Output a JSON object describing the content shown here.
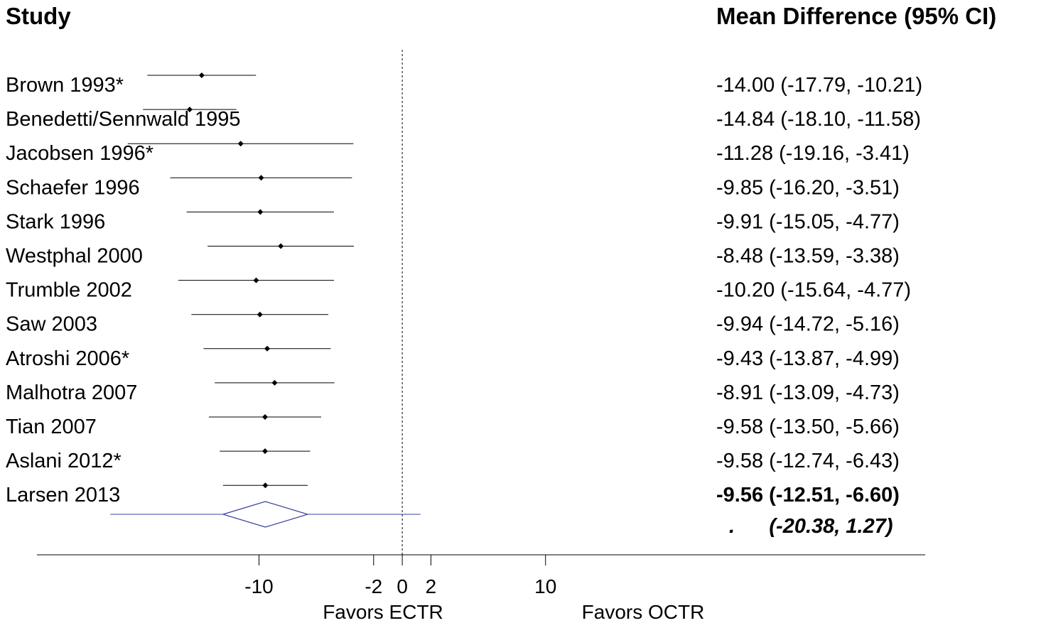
{
  "headers": {
    "study": "Study",
    "effect": "Mean Difference (95% CI)"
  },
  "chart_data": {
    "type": "forest",
    "studies": [
      {
        "name": "Brown 1993*",
        "md": -14.0,
        "lower": -17.79,
        "upper": -10.21,
        "ci_text": "-14.00 (-17.79, -10.21)"
      },
      {
        "name": "Benedetti/Sennwald 1995",
        "md": -14.84,
        "lower": -18.1,
        "upper": -11.58,
        "ci_text": "-14.84 (-18.10, -11.58)"
      },
      {
        "name": "Jacobsen 1996*",
        "md": -11.28,
        "lower": -19.16,
        "upper": -3.41,
        "ci_text": "-11.28 (-19.16, -3.41)"
      },
      {
        "name": "Schaefer 1996",
        "md": -9.85,
        "lower": -16.2,
        "upper": -3.51,
        "ci_text": "-9.85 (-16.20, -3.51)"
      },
      {
        "name": "Stark 1996",
        "md": -9.91,
        "lower": -15.05,
        "upper": -4.77,
        "ci_text": "-9.91 (-15.05, -4.77)"
      },
      {
        "name": "Westphal 2000",
        "md": -8.48,
        "lower": -13.59,
        "upper": -3.38,
        "ci_text": "-8.48 (-13.59, -3.38)"
      },
      {
        "name": "Trumble 2002",
        "md": -10.2,
        "lower": -15.64,
        "upper": -4.77,
        "ci_text": "-10.20 (-15.64, -4.77)"
      },
      {
        "name": "Saw 2003",
        "md": -9.94,
        "lower": -14.72,
        "upper": -5.16,
        "ci_text": "-9.94 (-14.72, -5.16)"
      },
      {
        "name": "Atroshi 2006*",
        "md": -9.43,
        "lower": -13.87,
        "upper": -4.99,
        "ci_text": "-9.43 (-13.87, -4.99)"
      },
      {
        "name": "Malhotra 2007",
        "md": -8.91,
        "lower": -13.09,
        "upper": -4.73,
        "ci_text": "-8.91 (-13.09, -4.73)"
      },
      {
        "name": "Tian 2007",
        "md": -9.58,
        "lower": -13.5,
        "upper": -5.66,
        "ci_text": "-9.58 (-13.50, -5.66)"
      },
      {
        "name": "Aslani 2012*",
        "md": -9.58,
        "lower": -12.74,
        "upper": -6.43,
        "ci_text": "-9.58 (-12.74, -6.43)"
      },
      {
        "name": "Larsen 2013",
        "md": -9.56,
        "lower": -12.51,
        "upper": -6.6,
        "ci_text": "-9.56 (-12.51, -6.60)",
        "bold": true
      }
    ],
    "pooled": {
      "md": -9.56,
      "lower": -12.51,
      "upper": -6.6,
      "prediction_lower": -20.38,
      "prediction_upper": 1.27,
      "ci_text": ".      (-20.38, 1.27)"
    },
    "xaxis": {
      "ticks": [
        -10,
        -2,
        0,
        2,
        10
      ],
      "tick_labels": [
        "-10",
        "-2",
        "0",
        "2",
        "10"
      ],
      "xlim": [
        -25.5,
        36.5
      ],
      "reference_line": 0
    },
    "favors_left": "Favors ECTR",
    "favors_right": "Favors OCTR",
    "colors": {
      "marker": "#000000",
      "ci_line": "#000000",
      "pooled": "#3a3fa0",
      "reference_line": "#000000"
    }
  }
}
